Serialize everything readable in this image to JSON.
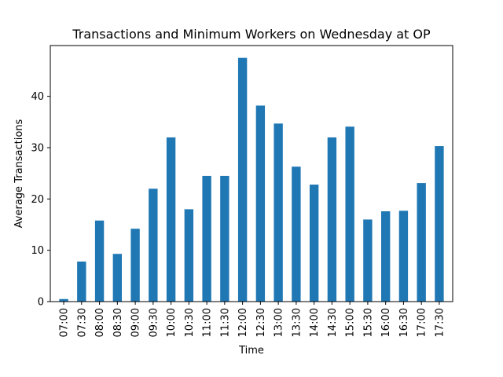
{
  "chart_data": {
    "type": "bar",
    "title": "Transactions and Minimum Workers on Wednesday at OP",
    "xlabel": "Time",
    "ylabel": "Average Transactions",
    "categories": [
      "07:00",
      "07:30",
      "08:00",
      "08:30",
      "09:00",
      "09:30",
      "10:00",
      "10:30",
      "11:00",
      "11:30",
      "12:00",
      "12:30",
      "13:00",
      "13:30",
      "14:00",
      "14:30",
      "15:00",
      "15:30",
      "16:00",
      "16:30",
      "17:00",
      "17:30"
    ],
    "values": [
      0.5,
      7.8,
      15.8,
      9.3,
      14.2,
      22.0,
      32.0,
      18.0,
      24.5,
      24.5,
      47.5,
      38.2,
      34.7,
      26.3,
      22.8,
      32.0,
      34.1,
      16.0,
      17.6,
      17.7,
      23.1,
      30.3
    ],
    "ylim": [
      0,
      49.9
    ],
    "yticks": [
      0,
      10,
      20,
      30,
      40
    ],
    "bar_color": "#1f77b4",
    "grid": false,
    "legend": "none"
  }
}
